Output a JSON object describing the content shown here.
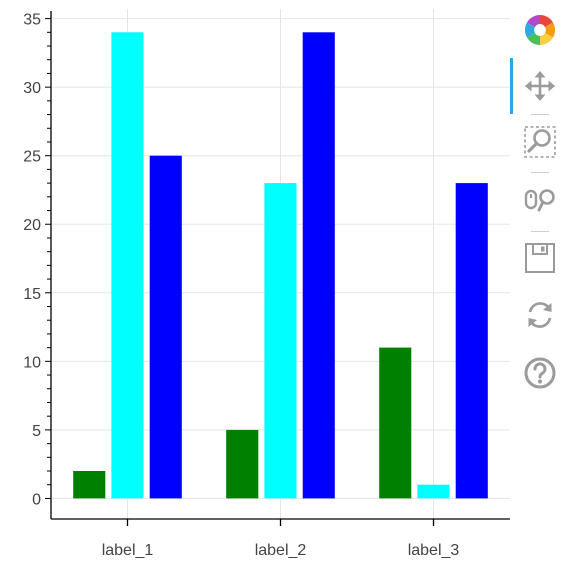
{
  "chart_data": {
    "type": "bar",
    "categories": [
      "label_1",
      "label_2",
      "label_3"
    ],
    "series": [
      {
        "color": "#008000",
        "values": [
          2,
          5,
          11
        ]
      },
      {
        "color": "#00ffff",
        "values": [
          34,
          23,
          1
        ]
      },
      {
        "color": "#0000ff",
        "values": [
          25,
          34,
          23
        ]
      }
    ],
    "title": "",
    "xlabel": "",
    "ylabel": "",
    "ylim": [
      -1.5,
      35.7
    ],
    "yticks": [
      0,
      5,
      10,
      15,
      20,
      25,
      30,
      35
    ],
    "grid": true,
    "legend": "none"
  },
  "toolbar": {
    "tools": [
      {
        "name": "bokeh-logo",
        "icon": "bokeh-logo-icon",
        "interactable": true
      },
      {
        "name": "pan-tool",
        "icon": "pan-icon",
        "active": true,
        "accent": "#26aae1"
      },
      {
        "name": "box-zoom-tool",
        "icon": "box-zoom-icon"
      },
      {
        "name": "wheel-zoom-tool",
        "icon": "wheel-zoom-icon"
      },
      {
        "name": "save-tool",
        "icon": "save-icon"
      },
      {
        "name": "reset-tool",
        "icon": "reset-icon"
      },
      {
        "name": "help-tool",
        "icon": "help-icon"
      }
    ]
  }
}
